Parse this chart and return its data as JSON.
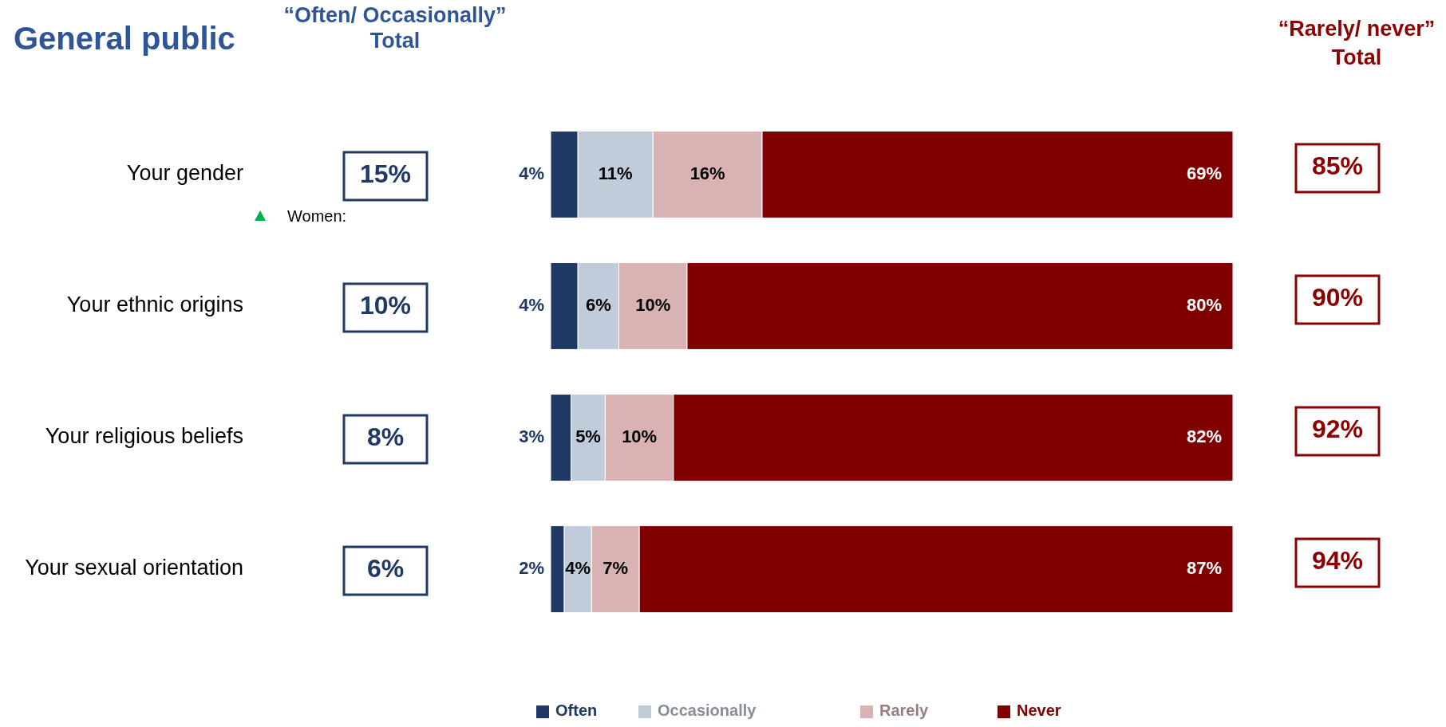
{
  "chart_data": {
    "type": "bar",
    "orientation": "horizontal",
    "stacked": true,
    "title": "General public",
    "categories": [
      "Your gender",
      "Your ethnic origins",
      "Your religious beliefs",
      "Your sexual orientation"
    ],
    "series": [
      {
        "name": "Often",
        "color": "#1f3864",
        "values": [
          4,
          4,
          3,
          2
        ],
        "value_labels": [
          "4%",
          "4%",
          "3%",
          "2%"
        ]
      },
      {
        "name": "Occasionally",
        "color": "#c0ccd9",
        "values": [
          11,
          6,
          5,
          4
        ],
        "value_labels": [
          "11%",
          "6%",
          "5%",
          "4%"
        ]
      },
      {
        "name": "Rarely",
        "color": "#d9b3b3",
        "values": [
          16,
          10,
          10,
          7
        ],
        "value_labels": [
          "16%",
          "10%",
          "10%",
          "7%"
        ]
      },
      {
        "name": "Never",
        "color": "#800000",
        "values": [
          69,
          80,
          82,
          87
        ],
        "value_labels": [
          "69%",
          "80%",
          "82%",
          "87%"
        ]
      }
    ],
    "legend": "bottom",
    "annotations": [
      "“Often/ Occasionally”\nTotal",
      "“Rarely/ never”\nTotal",
      "Women:",
      "15%",
      "10%",
      "8%",
      "6%",
      "85%",
      "90%",
      "92%",
      "94%"
    ]
  }
}
